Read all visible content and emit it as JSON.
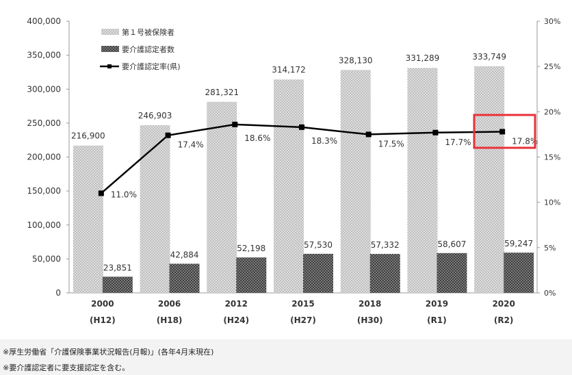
{
  "chart_data": {
    "type": "bar",
    "categories": [
      "2000",
      "2006",
      "2012",
      "2015",
      "2018",
      "2019",
      "2020"
    ],
    "sub_categories": [
      "(H12)",
      "(H18)",
      "(H24)",
      "(H27)",
      "(H30)",
      "(R1)",
      "(R2)"
    ],
    "series": [
      {
        "name": "第１号被保険者",
        "type": "bar",
        "axis": "left",
        "values": [
          216900,
          246903,
          281321,
          314172,
          328130,
          331289,
          333749
        ],
        "labels": [
          "216,900",
          "246,903",
          "281,321",
          "314,172",
          "328,130",
          "331,289",
          "333,749"
        ]
      },
      {
        "name": "要介護認定者数",
        "type": "bar",
        "axis": "left",
        "values": [
          23851,
          42884,
          52198,
          57530,
          57332,
          58607,
          59247
        ],
        "labels": [
          "23,851",
          "42,884",
          "52,198",
          "57,530",
          "57,332",
          "58,607",
          "59,247"
        ]
      },
      {
        "name": "要介護認定率(県)",
        "type": "line",
        "axis": "right",
        "values": [
          11.0,
          17.4,
          18.6,
          18.3,
          17.5,
          17.7,
          17.8
        ],
        "labels": [
          "11.0%",
          "17.4%",
          "18.6%",
          "18.3%",
          "17.5%",
          "17.7%",
          "17.8%"
        ]
      }
    ],
    "ylim": [
      0,
      400000
    ],
    "y_ticks": [
      "0",
      "50,000",
      "100,000",
      "150,000",
      "200,000",
      "250,000",
      "300,000",
      "350,000",
      "400,000"
    ],
    "y2lim": [
      0,
      30
    ],
    "y2_ticks": [
      "0%",
      "5%",
      "10%",
      "15%",
      "20%",
      "25%",
      "30%"
    ],
    "legend_position": "top-left",
    "highlight_category": "2020",
    "colors": {
      "highlight": "#e8303a",
      "line": "#000000",
      "bar1": "#d0d0d0",
      "bar2": "#555555"
    }
  },
  "notes": [
    "※厚生労働省「介護保険事業状況報告(月報)」(各年4月末現在)",
    "※要介護認定者に要支援認定を含む。"
  ]
}
